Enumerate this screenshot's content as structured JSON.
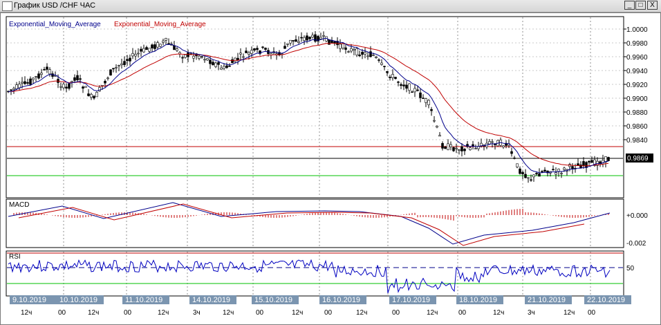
{
  "window": {
    "title": "График USD /CHF  ЧАС",
    "buttons": [
      "_",
      "□",
      "X"
    ]
  },
  "indicators": {
    "ema1_label": "Exponential_Moving_Average",
    "ema2_label": "Exponential_Moving_Average",
    "macd_label": "MACD",
    "rsi_label": "RSI"
  },
  "price_axis": {
    "ticks": [
      "1.0000",
      "0.9980",
      "0.9960",
      "0.9940",
      "0.9920",
      "0.9900",
      "0.9880",
      "0.9860",
      "0.9840"
    ],
    "current_price": "0.9869"
  },
  "macd_axis": {
    "ticks": [
      "+0.000",
      "-0.002"
    ]
  },
  "rsi_axis": {
    "ticks": [
      "50"
    ]
  },
  "dates": [
    "9.10.2019",
    "10.10.2019",
    "11.10.2019",
    "14.10.2019",
    "15.10.2019",
    "16.10.2019",
    "17.10.2019",
    "18.10.2019",
    "21.10.2019",
    "22.10.2019"
  ],
  "time_labels": [
    "12ч",
    "00",
    "12ч",
    "00",
    "12ч",
    "3ч",
    "12ч",
    "00",
    "12ч",
    "00",
    "12ч",
    "00",
    "12ч",
    "00",
    "12ч",
    "3ч",
    "12ч",
    "00"
  ],
  "colors": {
    "ema_fast": "#00008b",
    "ema_slow": "#c00000",
    "candles": "#000000",
    "macd_hist": "#c00000",
    "rsi_line": "#0000c0",
    "rsi_oversold": "#00c000",
    "level_red": "#c00000",
    "level_green": "#00c000",
    "date_bg": "#7b95b0"
  }
}
